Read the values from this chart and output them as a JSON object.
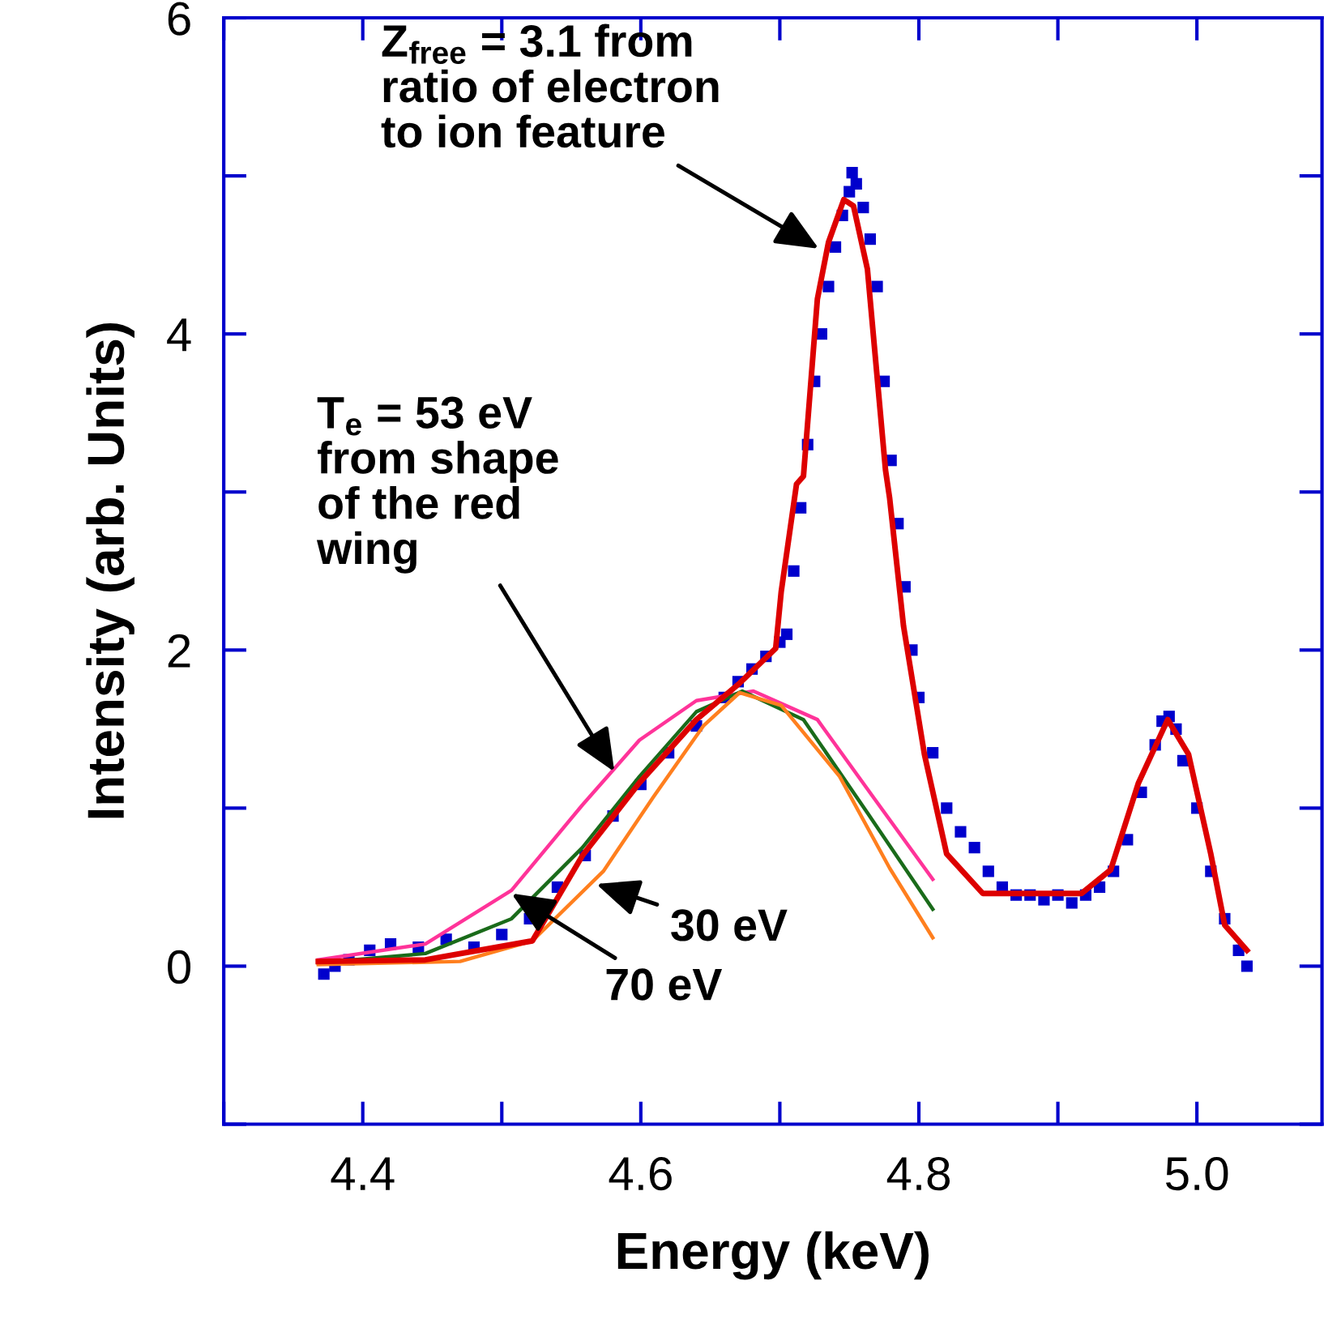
{
  "chart_data": {
    "type": "line",
    "xlabel": "Energy (keV)",
    "ylabel": "Intensity (arb. Units)",
    "xlim": [
      4.3,
      5.09
    ],
    "ylim": [
      -1,
      6
    ],
    "xticks": [
      {
        "value": 4.3,
        "label": null
      },
      4.4,
      {
        "value": 4.5,
        "label": null
      },
      4.6,
      {
        "value": 4.7,
        "label": null
      },
      4.8,
      {
        "value": 4.9,
        "label": null
      },
      {
        "value": 5.0,
        "label": "5.0"
      }
    ],
    "yticks": [
      {
        "value": -1,
        "label": null
      },
      0,
      {
        "value": 1,
        "label": null
      },
      2,
      {
        "value": 3,
        "label": null
      },
      4,
      {
        "value": 5,
        "label": null
      },
      6
    ],
    "grid": false,
    "legend": false,
    "series": [
      {
        "type": "scatter",
        "marker": "square",
        "color": "#0000cc",
        "x": [
          4.372,
          4.38,
          4.39,
          4.405,
          4.42,
          4.44,
          4.46,
          4.48,
          4.5,
          4.52,
          4.54,
          4.56,
          4.58,
          4.6,
          4.62,
          4.64,
          4.66,
          4.67,
          4.68,
          4.69,
          4.7,
          4.705,
          4.71,
          4.715,
          4.72,
          4.725,
          4.73,
          4.735,
          4.74,
          4.745,
          4.75,
          4.752,
          4.755,
          4.76,
          4.765,
          4.77,
          4.775,
          4.78,
          4.785,
          4.79,
          4.795,
          4.8,
          4.81,
          4.82,
          4.83,
          4.84,
          4.85,
          4.86,
          4.87,
          4.88,
          4.89,
          4.9,
          4.91,
          4.92,
          4.93,
          4.94,
          4.95,
          4.96,
          4.97,
          4.975,
          4.98,
          4.985,
          4.99,
          5.0,
          5.01,
          5.02,
          5.03,
          5.036
        ],
        "values": [
          -0.05,
          0.0,
          0.04,
          0.1,
          0.14,
          0.12,
          0.17,
          0.12,
          0.2,
          0.3,
          0.5,
          0.7,
          0.95,
          1.15,
          1.35,
          1.52,
          1.7,
          1.8,
          1.88,
          1.96,
          2.05,
          2.1,
          2.5,
          2.9,
          3.3,
          3.7,
          4.0,
          4.3,
          4.55,
          4.75,
          4.9,
          5.02,
          4.95,
          4.8,
          4.6,
          4.3,
          3.7,
          3.2,
          2.8,
          2.4,
          2.0,
          1.7,
          1.35,
          1.0,
          0.85,
          0.75,
          0.6,
          0.5,
          0.45,
          0.45,
          0.42,
          0.45,
          0.4,
          0.45,
          0.5,
          0.6,
          0.8,
          1.1,
          1.4,
          1.55,
          1.58,
          1.5,
          1.3,
          1.0,
          0.6,
          0.3,
          0.1,
          0.0
        ]
      },
      {
        "color": "#dd0000",
        "x": [
          4.368,
          4.445,
          4.522,
          4.558,
          4.599,
          4.64,
          4.671,
          4.697,
          4.701,
          4.712,
          4.717,
          4.727,
          4.735,
          4.746,
          4.753,
          4.763,
          4.776,
          4.779,
          4.789,
          4.804,
          4.82,
          4.846,
          4.881,
          4.917,
          4.938,
          4.958,
          4.979,
          4.994,
          5.01,
          5.02,
          5.036
        ],
        "values": [
          0.03,
          0.04,
          0.16,
          0.7,
          1.16,
          1.56,
          1.79,
          2.01,
          2.37,
          3.05,
          3.1,
          4.22,
          4.58,
          4.85,
          4.81,
          4.41,
          3.14,
          2.96,
          2.15,
          1.34,
          0.71,
          0.46,
          0.46,
          0.46,
          0.61,
          1.16,
          1.56,
          1.34,
          0.71,
          0.26,
          0.1
        ]
      },
      {
        "color": "#ff3399",
        "x": [
          4.368,
          4.445,
          4.507,
          4.558,
          4.599,
          4.64,
          4.681,
          4.727,
          4.768,
          4.81
        ],
        "values": [
          0.04,
          0.14,
          0.48,
          1.02,
          1.43,
          1.68,
          1.74,
          1.56,
          1.06,
          0.55
        ]
      },
      {
        "color": "#1a6b1a",
        "x": [
          4.368,
          4.445,
          4.507,
          4.558,
          4.599,
          4.64,
          4.673,
          4.717,
          4.763,
          4.81
        ],
        "values": [
          0.02,
          0.08,
          0.3,
          0.75,
          1.2,
          1.61,
          1.74,
          1.56,
          0.97,
          0.36
        ]
      },
      {
        "color": "#ff7f1e",
        "x": [
          4.368,
          4.47,
          4.522,
          4.573,
          4.609,
          4.645,
          4.671,
          4.701,
          4.743,
          4.779,
          4.81
        ],
        "values": [
          0.01,
          0.03,
          0.16,
          0.6,
          1.07,
          1.52,
          1.73,
          1.65,
          1.2,
          0.62,
          0.18
        ]
      }
    ],
    "annotations": [
      {
        "text": "Z$_{free}$ = 3.1 from\nratio of electron\nto ion feature",
        "x": 4.728,
        "y": 4.54
      },
      {
        "text": "T$_{e}$ = 53 eV\nfrom shape\nof the red\nwing",
        "x": 4.581,
        "y": 1.23
      },
      {
        "text": "30 eV",
        "x": 4.568,
        "y": 0.52
      },
      {
        "text": "70 eV",
        "x": 4.507,
        "y": 0.46
      }
    ]
  }
}
